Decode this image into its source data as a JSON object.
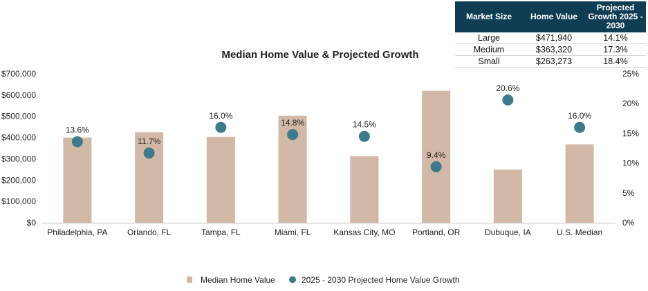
{
  "chart_data": {
    "type": "bar",
    "title": "Median Home Value & Projected Growth",
    "categories": [
      "Philadelphia, PA",
      "Orlando, FL",
      "Tampa, FL",
      "Miami, FL",
      "Kansas City, MO",
      "Portland, OR",
      "Dubuque, IA",
      "U.S. Median"
    ],
    "series": [
      {
        "name": "Median Home Value",
        "type": "bar",
        "axis": "left",
        "values": [
          400000,
          425000,
          403000,
          503000,
          313000,
          620000,
          250000,
          368000
        ]
      },
      {
        "name": "2025 - 2030 Projected Home Value Growth",
        "type": "scatter",
        "axis": "right",
        "values": [
          13.6,
          11.7,
          16.0,
          14.8,
          14.5,
          9.4,
          20.6,
          16.0
        ],
        "labels": [
          "13.6%",
          "11.7%",
          "16.0%",
          "14.8%",
          "14.5%",
          "9.4%",
          "20.6%",
          "16.0%"
        ]
      }
    ],
    "ylim": [
      0,
      700000
    ],
    "y2lim": [
      0,
      25
    ],
    "y_ticks": [
      "$0",
      "$100,000",
      "$200,000",
      "$300,000",
      "$400,000",
      "$500,000",
      "$600,000",
      "$700,000"
    ],
    "y2_ticks": [
      "0%",
      "5%",
      "10%",
      "15%",
      "20%",
      "25%"
    ],
    "legend_position": "bottom",
    "grid": false,
    "colors": {
      "bar": "#d2b8a6",
      "dot": "#3f7a8c"
    }
  },
  "market_table": {
    "headers": [
      "Market Size",
      "Home Value",
      "Projected Growth 2025 - 2030"
    ],
    "rows": [
      [
        "Large",
        "$471,940",
        "14.1%"
      ],
      [
        "Medium",
        "$363,320",
        "17.3%"
      ],
      [
        "Small",
        "$263,273",
        "18.4%"
      ]
    ],
    "header_color": "#0f3d53"
  }
}
